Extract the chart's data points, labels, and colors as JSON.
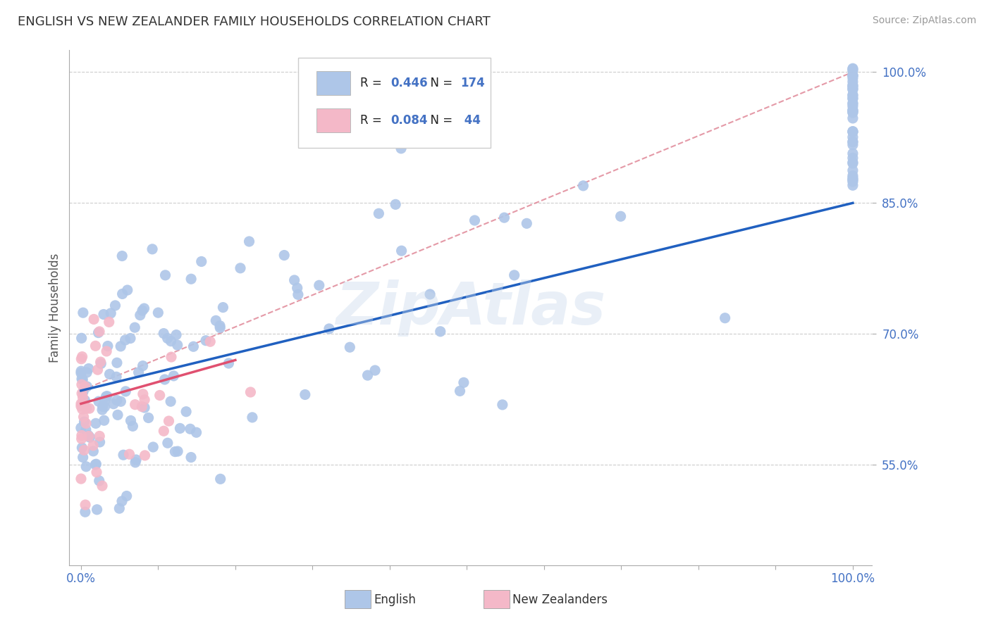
{
  "title": "ENGLISH VS NEW ZEALANDER FAMILY HOUSEHOLDS CORRELATION CHART",
  "source": "Source: ZipAtlas.com",
  "ylabel": "Family Households",
  "legend_entries": [
    {
      "label": "English",
      "R": "0.446",
      "N": "174",
      "color": "#aec6e8"
    },
    {
      "label": "New Zealanders",
      "R": "0.084",
      "N": " 44",
      "color": "#f4b8c8"
    }
  ],
  "ytick_labels": [
    "55.0%",
    "70.0%",
    "85.0%",
    "100.0%"
  ],
  "ytick_values": [
    0.55,
    0.7,
    0.85,
    1.0
  ],
  "blue_line_x0": 0.0,
  "blue_line_x1": 1.0,
  "blue_line_y0": 0.635,
  "blue_line_y1": 0.85,
  "pink_line_x0": 0.0,
  "pink_line_x1": 0.2,
  "pink_line_y0": 0.62,
  "pink_line_y1": 0.67,
  "dashed_line_x0": 0.0,
  "dashed_line_x1": 1.0,
  "dashed_line_y0": 0.635,
  "dashed_line_y1": 1.0,
  "blue_color": "#2060c0",
  "blue_scatter_color": "#aec6e8",
  "pink_color": "#e05070",
  "pink_dashed_color": "#e08898",
  "pink_scatter_color": "#f4b8c8",
  "title_color": "#333333",
  "tick_label_color": "#4472c4",
  "watermark": "ZipAtlas",
  "ylim": [
    0.435,
    1.025
  ],
  "xlim": [
    -0.015,
    1.025
  ],
  "bottom_legend_text_color": "#333333"
}
